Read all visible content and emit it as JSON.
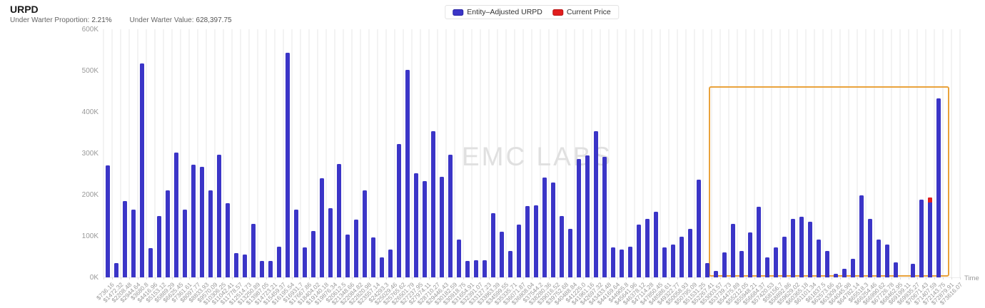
{
  "header": {
    "title": "URPD",
    "stats": [
      {
        "label": "Under Warter Proportion:",
        "value": "2.21%"
      },
      {
        "label": "Under Warter Value:",
        "value": "628,397.75"
      }
    ]
  },
  "legend": [
    {
      "label": "Entity–Adjusted URPD",
      "color": "#3b35c7",
      "border": "#2723a5"
    },
    {
      "label": "Current Price",
      "color": "#e11d1d",
      "border": "#b91414"
    }
  ],
  "watermark": "EMC LABS",
  "colors": {
    "bar": "#3b35c7",
    "current_price": "#e11d1d",
    "highlight_box": "#e9a23b",
    "axis_text": "#999999",
    "grid_stripe": "#f3f3f3"
  },
  "chart_data": {
    "type": "bar",
    "title": "URPD",
    "x_axis_name": "Time",
    "ylabel": "",
    "values_unit": "thousands",
    "ylim_thousands": [
      0,
      600
    ],
    "y_ticks": [
      "0K",
      "100K",
      "200K",
      "300K",
      "400K",
      "500K",
      "600K"
    ],
    "legend_position": "top-center",
    "grid": "vertical-stripes",
    "categories": [
      "$736.16",
      "$1472.32",
      "$2208.48",
      "$2944.64",
      "$3680.8",
      "$4416.96",
      "$5153.12",
      "$5889.29",
      "$6625.45",
      "$7361.61",
      "$8097.77",
      "$8833.93",
      "$9570.09",
      "$10306.25",
      "$11042.41",
      "$11778.57",
      "$12514.73",
      "$13250.89",
      "$13987.05",
      "$14723.21",
      "$15459.37",
      "$16195.54",
      "$16931.7",
      "$17667.86",
      "$18404.02",
      "$19140.18",
      "$19876.34",
      "$20612.5",
      "$21348.66",
      "$22084.82",
      "$22820.98",
      "$23557.14",
      "$24293.3",
      "$25029.46",
      "$25765.62",
      "$26501.79",
      "$27237.95",
      "$27974.11",
      "$28710.27",
      "$29446.43",
      "$30182.59",
      "$30918.75",
      "$31654.91",
      "$32391.07",
      "$33127.23",
      "$33863.39",
      "$34599.55",
      "$35335.71",
      "$36071.87",
      "$36808.04",
      "$37544.2",
      "$38280.36",
      "$39016.52",
      "$39752.68",
      "$40488.84",
      "$41225.0",
      "$41961.16",
      "$42697.32",
      "$43433.48",
      "$44169.64",
      "$44905.8",
      "$45641.96",
      "$46378.12",
      "$47114.28",
      "$47850.45",
      "$48586.61",
      "$49322.77",
      "$50058.93",
      "$50795.09",
      "$51531.25",
      "$52267.41",
      "$53003.57",
      "$53739.73",
      "$54475.89",
      "$55212.05",
      "$55948.21",
      "$56684.37",
      "$57420.53",
      "$58156.7",
      "$58892.86",
      "$59629.02",
      "$60365.18",
      "$61101.34",
      "$61837.5",
      "$62573.66",
      "$63309.82",
      "$64045.98",
      "$64782.14",
      "$65518.3",
      "$66254.46",
      "$66990.62",
      "$67726.78",
      "$68462.95",
      "$69199.11",
      "$69935.27",
      "$70671.43",
      "$71407.59",
      "$72143.75",
      "$72879.91",
      "$73616.07"
    ],
    "series": [
      {
        "name": "Entity–Adjusted URPD",
        "values": [
          270,
          35,
          185,
          163,
          517,
          70,
          148,
          210,
          302,
          163,
          272,
          267,
          210,
          297,
          180,
          58,
          55,
          130,
          40,
          40,
          75,
          543,
          163,
          73,
          112,
          240,
          167,
          275,
          103,
          140,
          210,
          96,
          49,
          68,
          323,
          502,
          251,
          232,
          354,
          243,
          296,
          91,
          39,
          41,
          42,
          155,
          110,
          63,
          127,
          172,
          175,
          242,
          229,
          149,
          118,
          287,
          294,
          354,
          292,
          73,
          68,
          75,
          127,
          142,
          158,
          73,
          80,
          98,
          117,
          237,
          34,
          15,
          61,
          129,
          63,
          108,
          170,
          48,
          73,
          99,
          141,
          146,
          135,
          92,
          63,
          8,
          20,
          44,
          198,
          141,
          91,
          79,
          37,
          0,
          33,
          188,
          193,
          433,
          0,
          0
        ]
      }
    ],
    "current_price": {
      "series_name": "Current Price",
      "category": "$71407.59",
      "category_index": 96,
      "cap_thousands": 12
    },
    "highlight_box": {
      "start_index": 70.65,
      "end_index": 98.75,
      "top_thousands": 462
    }
  }
}
